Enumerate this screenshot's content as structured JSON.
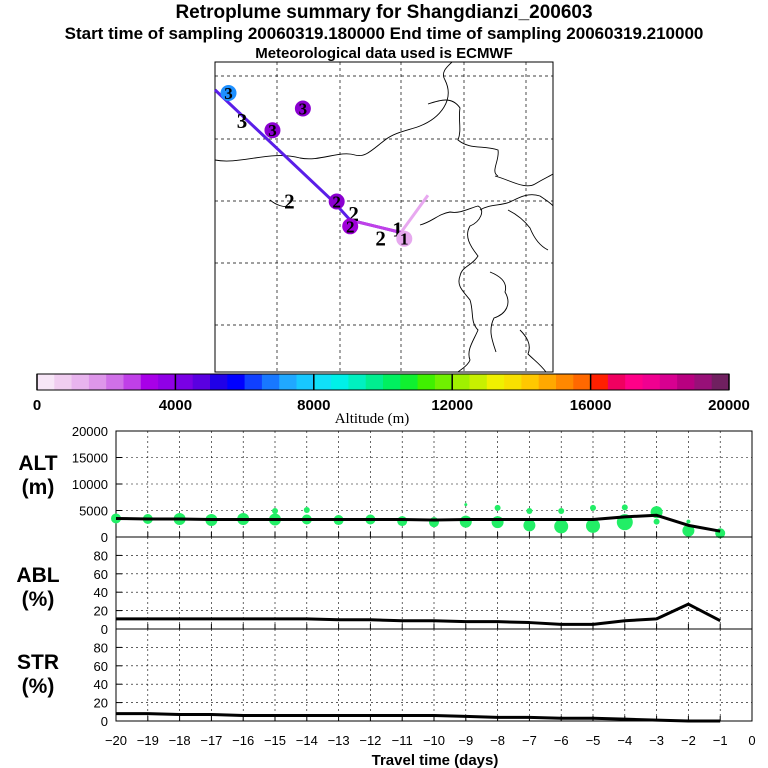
{
  "titles": {
    "main": "Retroplume summary for Shangdianzi_200603",
    "times": "Start time of sampling 20060319.180000     End time of sampling 20060319.210000",
    "met": "Meteorological data used is ECMWF"
  },
  "map": {
    "markers": [
      {
        "label": "3",
        "color": "#1e90ff",
        "lon": 0.04,
        "lat": 0.1,
        "filled": true
      },
      {
        "label": "3",
        "color": "#000000",
        "lon": 0.08,
        "lat": 0.19,
        "filled": false
      },
      {
        "label": "3",
        "color": "#8b00d0",
        "lon": 0.17,
        "lat": 0.22,
        "filled": true
      },
      {
        "label": "3",
        "color": "#8b00d0",
        "lon": 0.26,
        "lat": 0.15,
        "filled": true
      },
      {
        "label": "2",
        "color": "#000000",
        "lon": 0.22,
        "lat": 0.45,
        "filled": false
      },
      {
        "label": "2",
        "color": "#8b00d0",
        "lon": 0.36,
        "lat": 0.45,
        "filled": true
      },
      {
        "label": "2",
        "color": "#000000",
        "lon": 0.41,
        "lat": 0.49,
        "filled": false
      },
      {
        "label": "2",
        "color": "#a000d8",
        "lon": 0.4,
        "lat": 0.53,
        "filled": true
      },
      {
        "label": "2",
        "color": "#000000",
        "lon": 0.49,
        "lat": 0.57,
        "filled": false
      },
      {
        "label": "1",
        "color": "#000000",
        "lon": 0.54,
        "lat": 0.54,
        "filled": false
      },
      {
        "label": "1",
        "color": "#e6a8ee",
        "lon": 0.56,
        "lat": 0.57,
        "filled": true
      }
    ],
    "track": [
      [
        0.0,
        0.09
      ],
      [
        0.35,
        0.45
      ],
      [
        0.4,
        0.51
      ],
      [
        0.55,
        0.55
      ]
    ],
    "plume_tail": [
      [
        0.55,
        0.55
      ],
      [
        0.63,
        0.43
      ]
    ]
  },
  "colorbar": {
    "xlabel": "Altitude (m)",
    "ticks": [
      "0",
      "4000",
      "8000",
      "12000",
      "16000",
      "20000"
    ],
    "colors": [
      "#f7e6f7",
      "#f0cdf0",
      "#e8b4ee",
      "#de96ea",
      "#d070e8",
      "#c040e8",
      "#a800e8",
      "#9000e6",
      "#7a00e4",
      "#5a00e0",
      "#2000e8",
      "#0000ff",
      "#1040ff",
      "#1878ff",
      "#20a8ff",
      "#18c8ff",
      "#10e0f8",
      "#00f0e8",
      "#00f0c0",
      "#00ee90",
      "#00f060",
      "#10f030",
      "#40f000",
      "#70f000",
      "#a0f000",
      "#c8f000",
      "#f0f000",
      "#f8e000",
      "#ffc800",
      "#ffa800",
      "#ff8800",
      "#ff6800",
      "#ff2000",
      "#f00060",
      "#ff0088",
      "#f00090",
      "#d80090",
      "#b80080",
      "#981078",
      "#702060"
    ]
  },
  "chart_data": [
    {
      "type": "line",
      "name": "ALT",
      "ylabel": "ALT\n(m)",
      "ylabel_line1": "ALT",
      "ylabel_line2": "(m)",
      "ylim": [
        0,
        20000
      ],
      "yticks": [
        "20000",
        "15000",
        "10000",
        "5000",
        "0"
      ],
      "x": [
        -20,
        -19,
        -18,
        -17,
        -16,
        -15,
        -14,
        -13,
        -12,
        -11,
        -10,
        -9,
        -8,
        -7,
        -6,
        -5,
        -4,
        -3,
        -2,
        -1
      ],
      "values": [
        3500,
        3400,
        3400,
        3300,
        3300,
        3300,
        3300,
        3300,
        3300,
        3300,
        3200,
        3300,
        3300,
        3300,
        3300,
        3300,
        3800,
        4100,
        2200,
        1100
      ],
      "dots": [
        {
          "x": -20,
          "y": 3500,
          "s": 5
        },
        {
          "x": -19,
          "y": 3400,
          "s": 5
        },
        {
          "x": -18,
          "y": 3400,
          "s": 6
        },
        {
          "x": -17,
          "y": 3200,
          "s": 6
        },
        {
          "x": -16,
          "y": 3400,
          "s": 6
        },
        {
          "x": -15,
          "y": 3300,
          "s": 6
        },
        {
          "x": -14,
          "y": 3300,
          "s": 5
        },
        {
          "x": -13,
          "y": 3200,
          "s": 5
        },
        {
          "x": -12,
          "y": 3300,
          "s": 5
        },
        {
          "x": -11,
          "y": 3000,
          "s": 5
        },
        {
          "x": -10,
          "y": 2800,
          "s": 5
        },
        {
          "x": -9,
          "y": 2900,
          "s": 6
        },
        {
          "x": -8,
          "y": 2800,
          "s": 6
        },
        {
          "x": -7,
          "y": 2200,
          "s": 6
        },
        {
          "x": -6,
          "y": 2000,
          "s": 7
        },
        {
          "x": -5,
          "y": 2100,
          "s": 7
        },
        {
          "x": -4,
          "y": 2800,
          "s": 8
        },
        {
          "x": -3,
          "y": 4700,
          "s": 6
        },
        {
          "x": -2,
          "y": 1200,
          "s": 6
        },
        {
          "x": -1,
          "y": 700,
          "s": 5
        },
        {
          "x": -15,
          "y": 4900,
          "s": 3
        },
        {
          "x": -14,
          "y": 5100,
          "s": 3
        },
        {
          "x": -8,
          "y": 5500,
          "s": 3
        },
        {
          "x": -9,
          "y": 6100,
          "s": 1.5
        },
        {
          "x": -4,
          "y": 5600,
          "s": 3
        },
        {
          "x": -5,
          "y": 5500,
          "s": 3
        },
        {
          "x": -6,
          "y": 4900,
          "s": 3
        },
        {
          "x": -7,
          "y": 4900,
          "s": 3
        },
        {
          "x": -2,
          "y": 2900,
          "s": 2
        },
        {
          "x": -3,
          "y": 2900,
          "s": 3
        }
      ]
    },
    {
      "type": "line",
      "name": "ABL",
      "ylabel_line1": "ABL",
      "ylabel_line2": "(%)",
      "ylim": [
        0,
        100
      ],
      "yticks": [
        "80",
        "60",
        "40",
        "20",
        "0"
      ],
      "x": [
        -20,
        -19,
        -18,
        -17,
        -16,
        -15,
        -14,
        -13,
        -12,
        -11,
        -10,
        -9,
        -8,
        -7,
        -6,
        -5,
        -4,
        -3,
        -2,
        -1
      ],
      "values": [
        11,
        11,
        11,
        11,
        11,
        11,
        11,
        10,
        10,
        9,
        9,
        8,
        8,
        7,
        5,
        5,
        9,
        11,
        27,
        9
      ]
    },
    {
      "type": "line",
      "name": "STR",
      "ylabel_line1": "STR",
      "ylabel_line2": "(%)",
      "ylim": [
        0,
        100
      ],
      "yticks": [
        "80",
        "60",
        "40",
        "20",
        "0"
      ],
      "x": [
        -20,
        -19,
        -18,
        -17,
        -16,
        -15,
        -14,
        -13,
        -12,
        -11,
        -10,
        -9,
        -8,
        -7,
        -6,
        -5,
        -4,
        -3,
        -2,
        -1
      ],
      "values": [
        8,
        8,
        7,
        7,
        6,
        6,
        6,
        6,
        6,
        6,
        6,
        5,
        4,
        4,
        3,
        3,
        2,
        1,
        0,
        0
      ],
      "xlabel": "Travel time (days)",
      "xticks": [
        "−20",
        "−19",
        "−18",
        "−17",
        "−16",
        "−15",
        "−14",
        "−13",
        "−12",
        "−11",
        "−10",
        "−9",
        "−8",
        "−7",
        "−6",
        "−5",
        "−4",
        "−3",
        "−2",
        "−1",
        "0"
      ]
    }
  ]
}
